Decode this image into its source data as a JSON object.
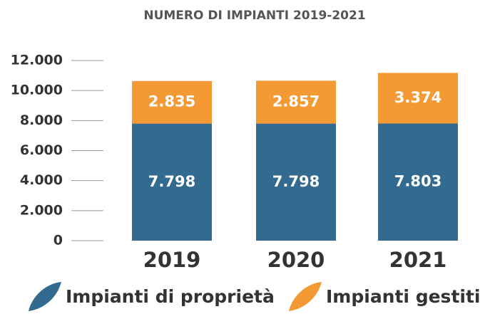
{
  "chart_data": {
    "type": "stacked_bar",
    "title": "NUMERO DI IMPIANTI 2019-2021",
    "categories": [
      "2019",
      "2020",
      "2021"
    ],
    "series": [
      {
        "name": "Impianti di proprietà",
        "color": "#336a8f",
        "values": [
          7798,
          7798,
          7803
        ],
        "value_labels": [
          "7.798",
          "7.798",
          "7.803"
        ]
      },
      {
        "name": "Impianti gestiti",
        "color": "#f39a35",
        "values": [
          2835,
          2857,
          3374
        ],
        "value_labels": [
          "2.835",
          "2.857",
          "3.374"
        ]
      }
    ],
    "ylim": [
      0,
      12000
    ],
    "yticks": [
      0,
      {
        "value": 2000,
        "label": "2.000"
      },
      {
        "value": 4000,
        "label": "4.000"
      },
      {
        "value": 6000,
        "label": "6.000"
      },
      {
        "value": 8000,
        "label": "8.000"
      },
      {
        "value": 10000,
        "label": "10.000"
      },
      {
        "value": 12000,
        "label": "12.000"
      }
    ],
    "grid": false,
    "legend": "bottom"
  }
}
